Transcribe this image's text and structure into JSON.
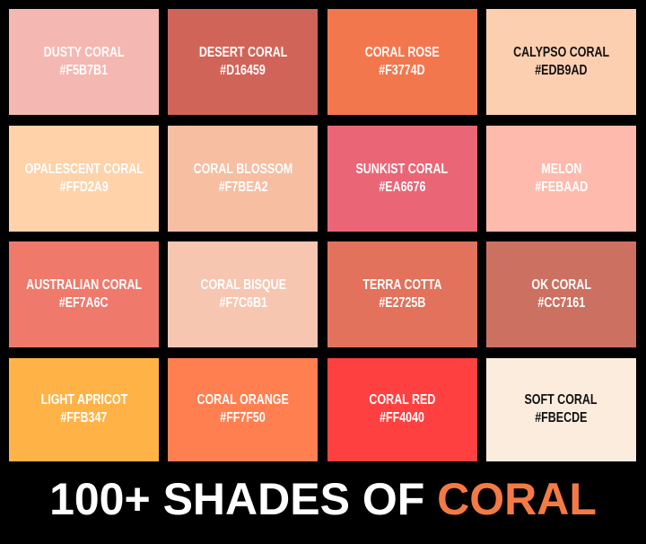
{
  "swatches": [
    {
      "name": "DUSTY CORAL",
      "hex": "#F5B7B1",
      "text": "light"
    },
    {
      "name": "DESERT CORAL",
      "hex": "#D16459",
      "text": "light"
    },
    {
      "name": "CORAL ROSE",
      "hex": "#F3774D",
      "text": "light"
    },
    {
      "name": "CALYPSO CORAL",
      "hex": "#EDB9AD",
      "text": "dark",
      "display": "#FBCFB0"
    },
    {
      "name": "OPALESCENT CORAL",
      "hex": "#FFD2A9",
      "text": "light"
    },
    {
      "name": "CORAL BLOSSOM",
      "hex": "#F7BEA2",
      "text": "light"
    },
    {
      "name": "SUNKIST CORAL",
      "hex": "#EA6676",
      "text": "light"
    },
    {
      "name": "MELON",
      "hex": "#FEBAAD",
      "text": "light"
    },
    {
      "name": "AUSTRALIAN CORAL",
      "hex": "#EF7A6C",
      "text": "light"
    },
    {
      "name": "CORAL BISQUE",
      "hex": "#F7C6B1",
      "text": "light"
    },
    {
      "name": "TERRA COTTA",
      "hex": "#E2725B",
      "text": "light"
    },
    {
      "name": "OK CORAL",
      "hex": "#CC7161",
      "text": "light"
    },
    {
      "name": "LIGHT APRICOT",
      "hex": "#FFB347",
      "text": "light"
    },
    {
      "name": "CORAL ORANGE",
      "hex": "#FF7F50",
      "text": "light"
    },
    {
      "name": "CORAL RED",
      "hex": "#FF4040",
      "text": "light"
    },
    {
      "name": "SOFT CORAL",
      "hex": "#FBECDE",
      "text": "dark"
    }
  ],
  "title": {
    "prefix": "100+ SHADES OF ",
    "accent": "CORAL",
    "accent_color": "#F47A45"
  }
}
